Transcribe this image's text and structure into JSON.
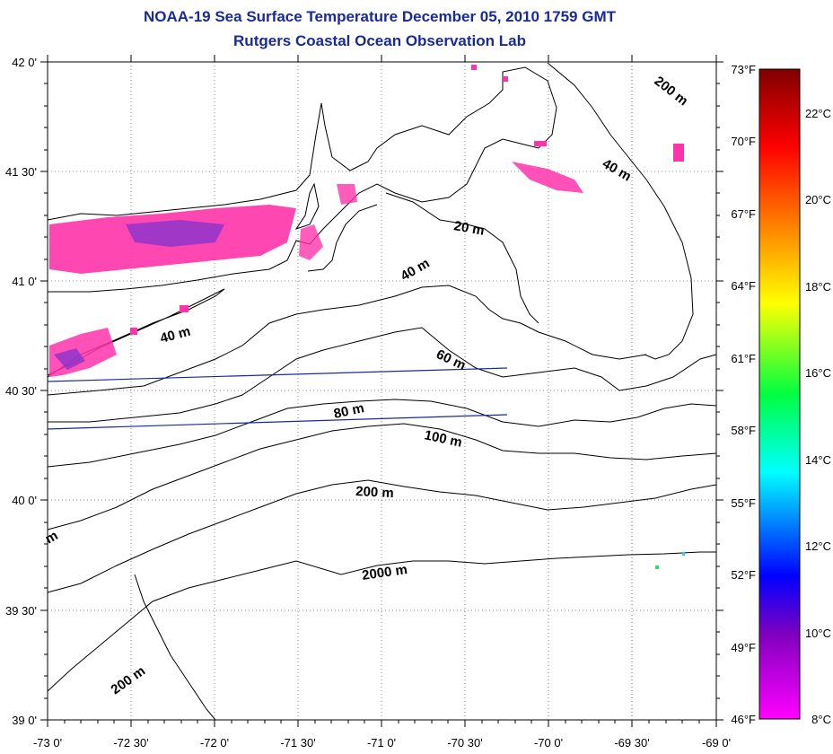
{
  "title": "NOAA-19 Sea Surface Temperature December 05, 2010 1759 GMT",
  "subtitle": "Rutgers Coastal Ocean Observation Lab",
  "map": {
    "lon_range": [
      -73.0,
      -69.0
    ],
    "lat_range": [
      39.0,
      42.0
    ],
    "grid": "dotted",
    "lon_ticks": [
      "-73 0'",
      "-72 30'",
      "-72 0'",
      "-71 30'",
      "-71 0'",
      "-70 30'",
      "-70 0'",
      "-69 30'",
      "-69 0'"
    ],
    "lat_ticks": [
      "42 0'",
      "41 30'",
      "41 0'",
      "40 30'",
      "40 0'",
      "39 30'",
      "39 0'"
    ],
    "contour_labels": [
      "200 m",
      "40 m",
      "20 m",
      "40 m",
      "40 m",
      "60 m",
      "80 m",
      "100 m",
      "200 m",
      "2000 m",
      "200 m",
      "m"
    ]
  },
  "colorbar": {
    "fahrenheit_labels": [
      "73°F",
      "70°F",
      "67°F",
      "64°F",
      "61°F",
      "58°F",
      "55°F",
      "52°F",
      "49°F",
      "46°F"
    ],
    "celsius_labels": [
      "22°C",
      "20°C",
      "18°C",
      "16°C",
      "14°C",
      "12°C",
      "10°C",
      "8°C"
    ],
    "colors": [
      "#800000",
      "#ff0000",
      "#ff8000",
      "#ffff00",
      "#00ff40",
      "#00ffff",
      "#0000ff",
      "#8000c0",
      "#ff00ff"
    ]
  }
}
